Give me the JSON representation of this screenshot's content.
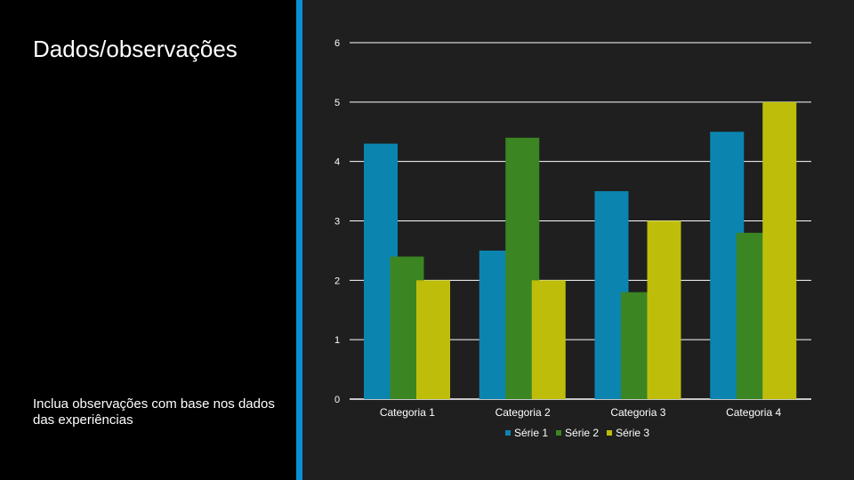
{
  "slide": {
    "title": "Dados/observações",
    "notes": "Inclua observações com base nos dados das experiências",
    "accent_color": "#0a8fd6"
  },
  "chart_data": {
    "type": "bar",
    "categories": [
      "Categoria 1",
      "Categoria 2",
      "Categoria 3",
      "Categoria 4"
    ],
    "series": [
      {
        "name": "Série 1",
        "color": "#0b85b0",
        "values": [
          4.3,
          2.5,
          3.5,
          4.5
        ]
      },
      {
        "name": "Série 2",
        "color": "#3b8522",
        "values": [
          2.4,
          4.4,
          1.8,
          2.8
        ]
      },
      {
        "name": "Série 3",
        "color": "#bebe0a",
        "values": [
          2.0,
          2.0,
          3.0,
          5.0
        ]
      }
    ],
    "yticks": [
      "0",
      "1",
      "2",
      "3",
      "4",
      "5",
      "6"
    ],
    "ylim": [
      0,
      6
    ],
    "grid": true,
    "legend_position": "bottom"
  }
}
